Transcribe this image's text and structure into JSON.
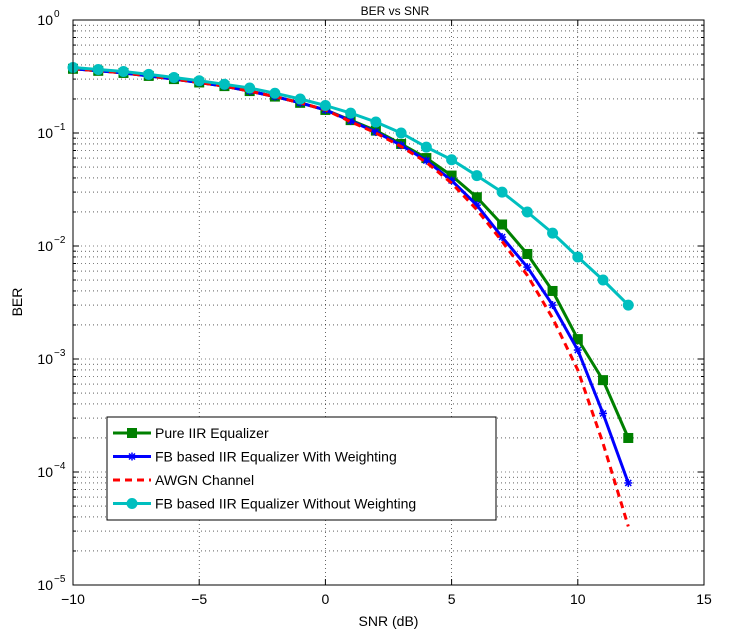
{
  "chart_data": {
    "type": "line",
    "title": "BER vs SNR",
    "xlabel": "SNR (dB)",
    "ylabel": "BER",
    "xlim": [
      -10,
      15
    ],
    "ylim": [
      1e-05,
      1
    ],
    "yscale": "log",
    "grid": true,
    "legend_position": "bottom-left",
    "xticks": [
      "−10",
      "−5",
      "0",
      "5",
      "10",
      "15"
    ],
    "xtick_values": [
      -10,
      -5,
      0,
      5,
      10,
      15
    ],
    "yticks": [
      {
        "value": 1e-05,
        "base": "10",
        "exp": "−5"
      },
      {
        "value": 0.0001,
        "base": "10",
        "exp": "−4"
      },
      {
        "value": 0.001,
        "base": "10",
        "exp": "−3"
      },
      {
        "value": 0.01,
        "base": "10",
        "exp": "−2"
      },
      {
        "value": 0.1,
        "base": "10",
        "exp": "−1"
      },
      {
        "value": 1,
        "base": "10",
        "exp": "0"
      }
    ],
    "x": [
      -10,
      -9,
      -8,
      -7,
      -6,
      -5,
      -4,
      -3,
      -2,
      -1,
      0,
      1,
      2,
      3,
      4,
      5,
      6,
      7,
      8,
      9,
      10,
      11,
      12
    ],
    "series": [
      {
        "name": "Pure IIR Equalizer",
        "color": "#008000",
        "marker": "square",
        "dash": false,
        "values": [
          0.37,
          0.355,
          0.34,
          0.32,
          0.3,
          0.28,
          0.26,
          0.235,
          0.21,
          0.185,
          0.16,
          0.13,
          0.105,
          0.08,
          0.06,
          0.042,
          0.027,
          0.0155,
          0.0085,
          0.004,
          0.0015,
          0.00065,
          0.0002
        ]
      },
      {
        "name": "FB based IIR Equalizer With Weighting",
        "color": "#0000ff",
        "marker": "star",
        "dash": false,
        "values": [
          0.37,
          0.355,
          0.34,
          0.32,
          0.3,
          0.28,
          0.26,
          0.235,
          0.21,
          0.185,
          0.16,
          0.128,
          0.102,
          0.078,
          0.057,
          0.038,
          0.023,
          0.012,
          0.0065,
          0.003,
          0.0012,
          0.00033,
          8e-05
        ]
      },
      {
        "name": "AWGN Channel",
        "color": "#ff0000",
        "marker": "none",
        "dash": true,
        "values": [
          0.37,
          0.355,
          0.34,
          0.32,
          0.3,
          0.28,
          0.26,
          0.235,
          0.21,
          0.185,
          0.16,
          0.126,
          0.1,
          0.076,
          0.055,
          0.036,
          0.021,
          0.011,
          0.0055,
          0.0023,
          0.0008,
          0.00018,
          3.3e-05
        ]
      },
      {
        "name": "FB based IIR Equalizer Without Weighting",
        "color": "#00bfbf",
        "marker": "circle",
        "dash": false,
        "values": [
          0.38,
          0.365,
          0.35,
          0.33,
          0.31,
          0.29,
          0.27,
          0.25,
          0.225,
          0.2,
          0.175,
          0.15,
          0.125,
          0.1,
          0.075,
          0.058,
          0.042,
          0.03,
          0.02,
          0.013,
          0.008,
          0.005,
          0.003
        ]
      }
    ]
  }
}
